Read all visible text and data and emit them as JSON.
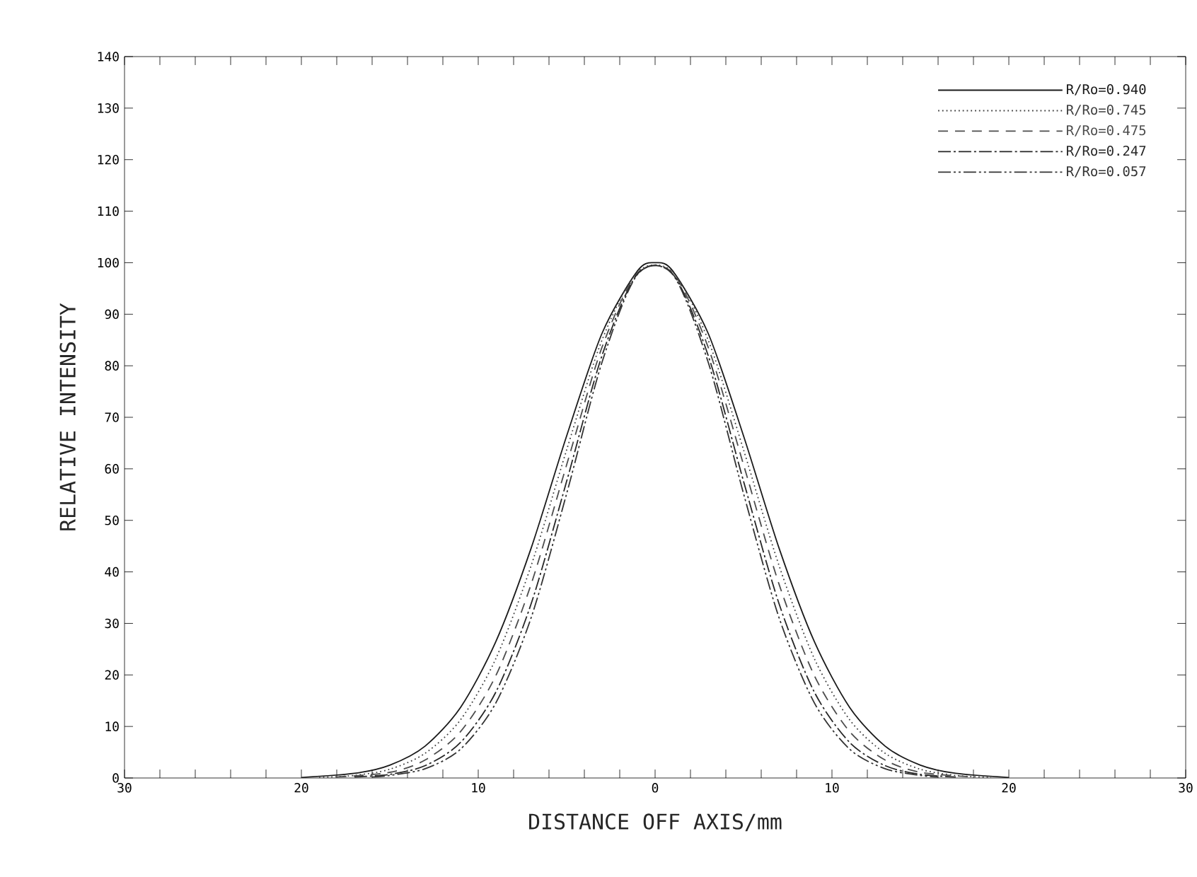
{
  "chart_data": {
    "type": "line",
    "xlabel": "DISTANCE OFF AXIS/mm",
    "ylabel": "RELATIVE INTENSITY",
    "series": [
      {
        "name": "R/Ro=0.940",
        "color": "#1a1a1a",
        "line_style": "solid",
        "x": [
          -20,
          -17,
          -15,
          -13,
          -11,
          -9,
          -7,
          -5,
          -3,
          -1,
          0,
          1,
          3,
          5,
          7,
          9,
          11,
          13,
          15,
          17,
          20
        ],
        "values": [
          0.1,
          0.9,
          2.5,
          6.2,
          13.7,
          26.5,
          44.7,
          66.4,
          86.3,
          98.4,
          100,
          98.4,
          86.3,
          66.4,
          44.7,
          26.5,
          13.7,
          6.2,
          2.5,
          0.9,
          0.1
        ]
      },
      {
        "name": "R/Ro=0.745",
        "color": "#404040",
        "line_style": "dotted",
        "x": [
          -19,
          -17,
          -15,
          -13,
          -11,
          -9,
          -7,
          -5,
          -3,
          -1,
          1,
          3,
          5,
          7,
          9,
          11,
          13,
          15,
          17,
          19
        ],
        "values": [
          0.1,
          0.5,
          1.7,
          4.8,
          11.3,
          23.2,
          41.3,
          63.7,
          85,
          98.2,
          98.2,
          85,
          63.7,
          41.3,
          23.2,
          11.3,
          4.8,
          1.7,
          0.5,
          0.1
        ]
      },
      {
        "name": "R/Ro=0.475",
        "color": "#4d4d4d",
        "line_style": "dashed",
        "x": [
          -18,
          -15,
          -13,
          -11,
          -9,
          -7,
          -5,
          -3,
          -1,
          1,
          3,
          5,
          7,
          9,
          11,
          13,
          15,
          18
        ],
        "values": [
          0.2,
          1.1,
          3.5,
          9,
          19.9,
          37.7,
          60.8,
          83.6,
          98,
          98,
          83.6,
          60.8,
          37.7,
          19.9,
          9,
          3.5,
          1.1,
          0.2
        ]
      },
      {
        "name": "R/Ro=0.247",
        "color": "#262626",
        "line_style": "dashdot",
        "x": [
          -17,
          -15,
          -13,
          -11,
          -9,
          -7,
          -5,
          -3,
          -1,
          1,
          3,
          5,
          7,
          9,
          11,
          13,
          15,
          17
        ],
        "values": [
          0.2,
          0.7,
          2.4,
          6.9,
          16.7,
          33.9,
          57.6,
          82,
          97.8,
          97.8,
          82,
          57.6,
          33.9,
          16.7,
          6.9,
          2.4,
          0.7,
          0.2
        ]
      },
      {
        "name": "R/Ro=0.057",
        "color": "#333333",
        "line_style": "dashdotdot",
        "x": [
          -16,
          -15,
          -13,
          -11,
          -9,
          -7,
          -5,
          -3,
          -1,
          1,
          3,
          5,
          7,
          9,
          11,
          13,
          15,
          16
        ],
        "values": [
          0.2,
          0.5,
          1.8,
          5.6,
          14.6,
          31.2,
          55.2,
          80.7,
          97.7,
          97.7,
          80.7,
          55.2,
          31.2,
          14.6,
          5.6,
          1.8,
          0.5,
          0.2
        ]
      }
    ],
    "xlim": [
      -30,
      30
    ],
    "xticks": [
      {
        "value": -30,
        "label": "30"
      },
      {
        "value": -28,
        "label": null
      },
      {
        "value": -26,
        "label": null
      },
      {
        "value": -24,
        "label": null
      },
      {
        "value": -22,
        "label": null
      },
      {
        "value": -20,
        "label": "20"
      },
      {
        "value": -18,
        "label": null
      },
      {
        "value": -16,
        "label": null
      },
      {
        "value": -14,
        "label": null
      },
      {
        "value": -12,
        "label": null
      },
      {
        "value": -10,
        "label": "10"
      },
      {
        "value": -8,
        "label": null
      },
      {
        "value": -6,
        "label": null
      },
      {
        "value": -4,
        "label": null
      },
      {
        "value": -2,
        "label": null
      },
      0,
      {
        "value": 2,
        "label": null
      },
      {
        "value": 4,
        "label": null
      },
      {
        "value": 6,
        "label": null
      },
      {
        "value": 8,
        "label": null
      },
      10,
      {
        "value": 12,
        "label": null
      },
      {
        "value": 14,
        "label": null
      },
      {
        "value": 16,
        "label": null
      },
      {
        "value": 18,
        "label": null
      },
      20,
      {
        "value": 22,
        "label": null
      },
      {
        "value": 24,
        "label": null
      },
      {
        "value": 26,
        "label": null
      },
      {
        "value": 28,
        "label": null
      },
      30
    ],
    "ylim": [
      0,
      140
    ],
    "yticks": [
      0,
      10,
      20,
      30,
      40,
      50,
      60,
      70,
      80,
      90,
      100,
      110,
      120,
      130,
      140
    ],
    "legend": "top right",
    "grid": false
  }
}
